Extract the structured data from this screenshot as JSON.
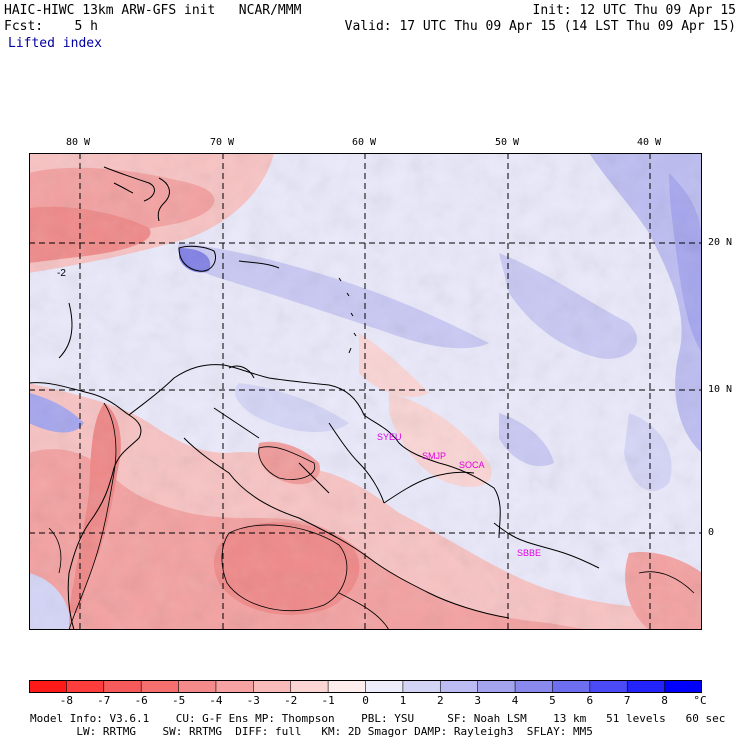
{
  "header": {
    "title": "HAIC-HIWC 13km ARW-GFS init   NCAR/MMM",
    "init": "Init: 12 UTC Thu 09 Apr 15",
    "fcst": "Fcst:    5 h",
    "valid": "Valid: 17 UTC Thu 09 Apr 15 (14 LST Thu 09 Apr 15)",
    "field": "Lifted index"
  },
  "map": {
    "lon_labels": [
      "80 W",
      "70 W",
      "60 W",
      "50 W",
      "40 W"
    ],
    "lat_labels": [
      "20 N",
      "10 N",
      "0"
    ],
    "contour_label": "-2",
    "station_labels": [
      {
        "name": "SYEU",
        "color": "#e000e0"
      },
      {
        "name": "SMJP",
        "color": "#e000e0"
      },
      {
        "name": "SOCA",
        "color": "#e000e0"
      },
      {
        "name": "SBBE",
        "color": "#e000e0"
      }
    ]
  },
  "colorbar": {
    "ticks": [
      "-8",
      "-7",
      "-6",
      "-5",
      "-4",
      "-3",
      "-2",
      "-1",
      "0",
      "1",
      "2",
      "3",
      "4",
      "5",
      "6",
      "7",
      "8"
    ],
    "unit": "°C",
    "colors": [
      "#ff1a1a",
      "#ff3d3d",
      "#f75a5a",
      "#f56f6f",
      "#f58a8a",
      "#f6a2a2",
      "#f9baba",
      "#fbd4d4",
      "#fdeded",
      "#ececfb",
      "#d4d4f7",
      "#bcbcf2",
      "#a4a4ee",
      "#8a8aee",
      "#6e6ef0",
      "#4a4af6",
      "#2323fb",
      "#0000ff"
    ]
  },
  "footer": {
    "line1": "Model Info: V3.6.1    CU: G-F Ens MP: Thompson    PBL: YSU     SF: Noah LSM    13 km   51 levels   60 sec",
    "line2": "       LW: RRTMG    SW: RRTMG  DIFF: full   KM: 2D Smagor DAMP: Rayleigh3  SFLAY: MM5"
  }
}
